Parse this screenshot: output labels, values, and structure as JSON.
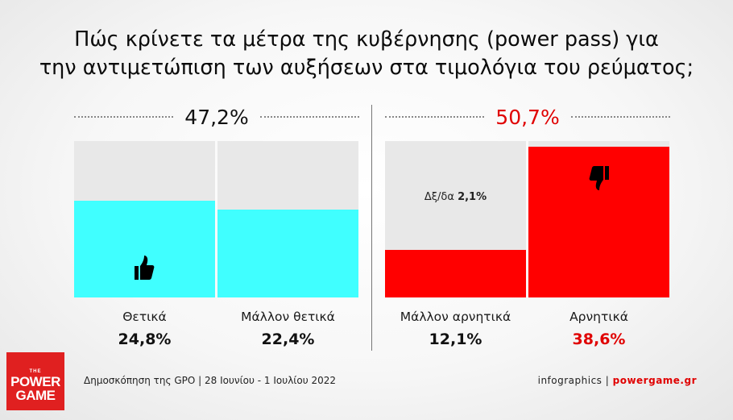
{
  "title": {
    "line1": "Πώς κρίνετε τα μέτρα της κυβέρνησης (power pass) για",
    "line2": "την αντιμετώπιση των αυξήσεων στα τιμολόγια του ρεύματος;"
  },
  "groups": {
    "positive_total": "47,2%",
    "negative_total": "50,7%"
  },
  "colors": {
    "positive": "#40ffff",
    "negative": "#ff0000",
    "background_bar": "#e8e8e8",
    "negative_value_text": "#e00000"
  },
  "dont_know": {
    "label": "Δξ/δα",
    "value": "2,1%"
  },
  "chart_data": {
    "type": "bar",
    "ylim": [
      0,
      40
    ],
    "categories": [
      "Θετικά",
      "Μάλλον θετικά",
      "Μάλλον αρνητικά",
      "Αρνητικά"
    ],
    "values": [
      24.8,
      22.4,
      12.1,
      38.6
    ],
    "value_labels": [
      "24,8%",
      "22,4%",
      "12,1%",
      "38,6%"
    ],
    "groups": [
      {
        "total": 47.2,
        "categories": [
          "Θετικά",
          "Μάλλον θετικά"
        ]
      },
      {
        "total": 50.7,
        "categories": [
          "Μάλλον αρνητικά",
          "Αρνητικά"
        ]
      }
    ],
    "dont_know": 2.1
  },
  "icons": {
    "positive": "thumbs-up-icon",
    "negative": "thumbs-down-icon"
  },
  "logo": {
    "the": "THE",
    "power": "POWER",
    "game": "GAME"
  },
  "footer": {
    "source": "Δημοσκόπηση της GPO | 28 Ιουνίου - 1 Ιουλίου 2022",
    "credit": "infographics |",
    "site": "powergame.gr"
  }
}
